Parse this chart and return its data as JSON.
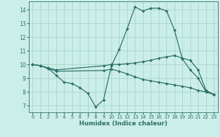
{
  "xlabel": "Humidex (Indice chaleur)",
  "bg_color": "#cceee8",
  "grid_color": "#aad8d0",
  "line_color": "#2a7068",
  "xlim": [
    -0.5,
    23.5
  ],
  "ylim": [
    6.5,
    14.6
  ],
  "xticks": [
    0,
    1,
    2,
    3,
    4,
    5,
    6,
    7,
    8,
    9,
    10,
    11,
    12,
    13,
    14,
    15,
    16,
    17,
    18,
    19,
    20,
    21,
    22,
    23
  ],
  "yticks": [
    7,
    8,
    9,
    10,
    11,
    12,
    13,
    14
  ],
  "lines": [
    {
      "x": [
        0,
        1,
        2,
        3,
        4,
        5,
        6,
        7,
        8,
        9,
        10,
        11,
        12,
        13,
        14,
        15,
        16,
        17,
        18,
        19,
        20,
        21,
        22,
        23
      ],
      "y": [
        10.0,
        9.9,
        9.7,
        9.2,
        8.7,
        8.6,
        8.3,
        7.9,
        6.9,
        7.4,
        9.9,
        11.1,
        12.6,
        14.2,
        13.9,
        14.1,
        14.1,
        13.9,
        12.5,
        10.4,
        9.6,
        9.0,
        8.0,
        7.8
      ]
    },
    {
      "x": [
        0,
        1,
        2,
        3,
        9,
        10,
        11,
        12,
        13,
        14,
        15,
        16,
        17,
        18,
        19,
        20,
        21,
        22,
        23
      ],
      "y": [
        10.0,
        9.9,
        9.75,
        9.6,
        9.9,
        10.0,
        10.0,
        10.05,
        10.1,
        10.2,
        10.3,
        10.45,
        10.55,
        10.65,
        10.45,
        10.3,
        9.6,
        8.1,
        7.8
      ]
    },
    {
      "x": [
        0,
        1,
        2,
        3,
        9,
        10,
        11,
        12,
        13,
        14,
        15,
        16,
        17,
        18,
        19,
        20,
        21,
        22,
        23
      ],
      "y": [
        10.0,
        9.9,
        9.7,
        9.5,
        9.55,
        9.65,
        9.5,
        9.3,
        9.1,
        8.9,
        8.8,
        8.7,
        8.6,
        8.5,
        8.4,
        8.3,
        8.1,
        8.0,
        7.8
      ]
    }
  ]
}
